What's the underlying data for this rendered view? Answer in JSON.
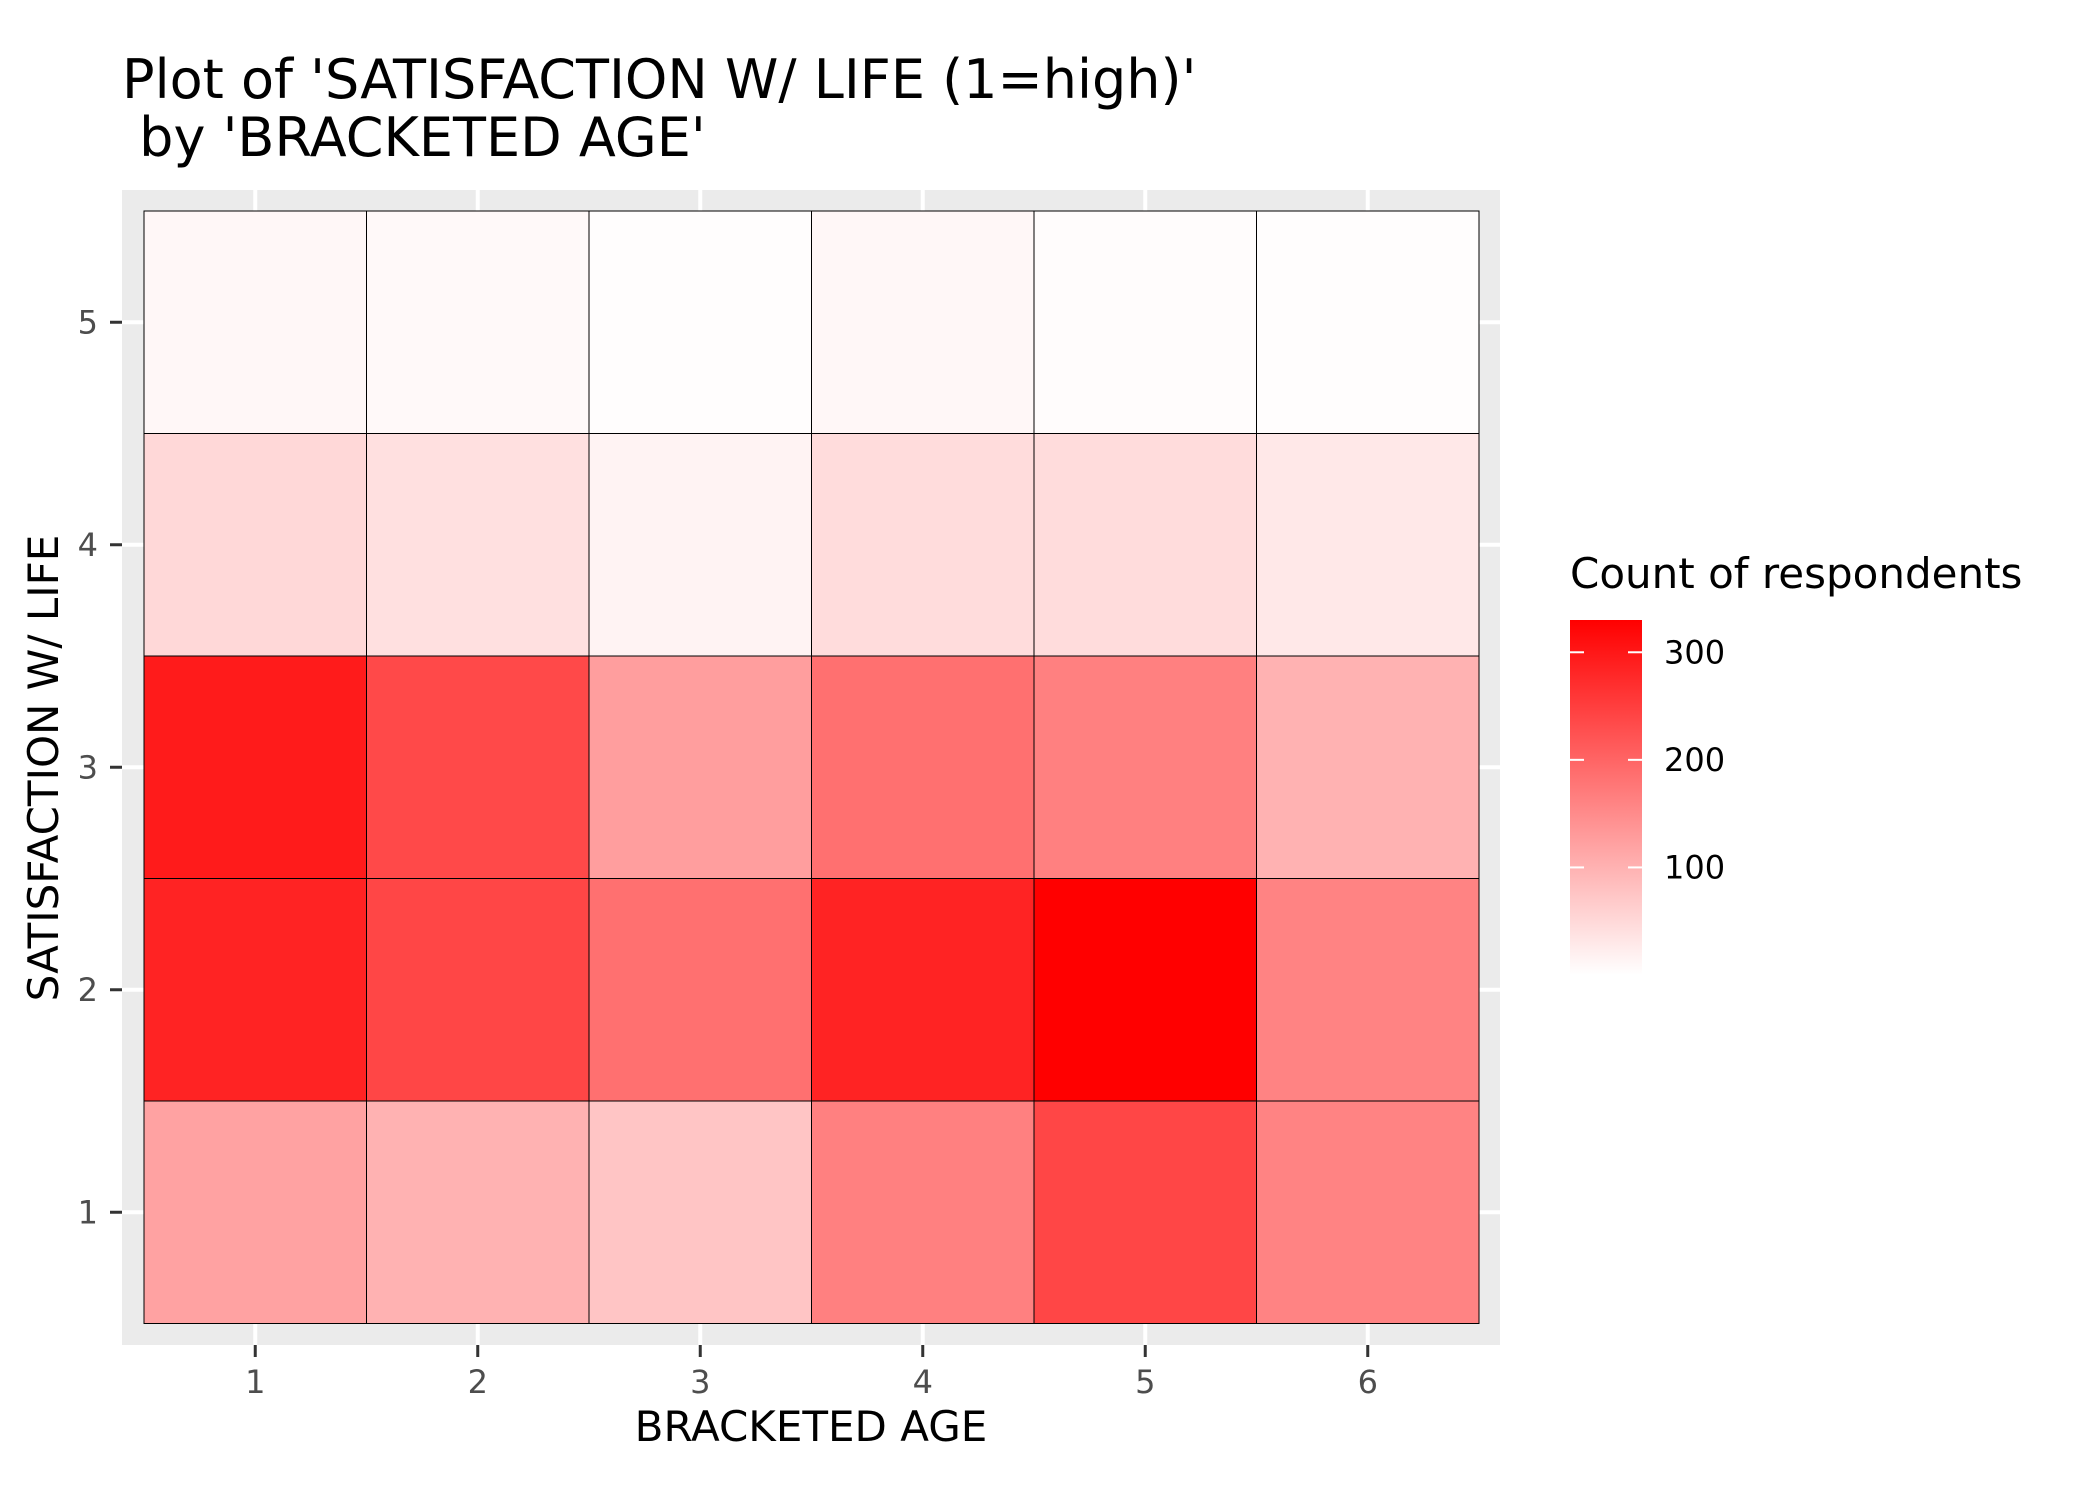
{
  "chart_data": {
    "type": "heatmap",
    "title_line1": "Plot of 'SATISFACTION W/ LIFE (1=high)'",
    "title_line2": " by 'BRACKETED AGE'",
    "xlabel": "BRACKETED AGE",
    "ylabel": "SATISFACTION W/ LIFE",
    "x_categories": [
      "1",
      "2",
      "3",
      "4",
      "5",
      "6"
    ],
    "y_categories": [
      "1",
      "2",
      "3",
      "4",
      "5"
    ],
    "cells": [
      {
        "x": 1,
        "y": 1,
        "value": 120
      },
      {
        "x": 2,
        "y": 1,
        "value": 100
      },
      {
        "x": 3,
        "y": 1,
        "value": 75
      },
      {
        "x": 4,
        "y": 1,
        "value": 165
      },
      {
        "x": 5,
        "y": 1,
        "value": 240
      },
      {
        "x": 6,
        "y": 1,
        "value": 160
      },
      {
        "x": 1,
        "y": 2,
        "value": 285
      },
      {
        "x": 2,
        "y": 2,
        "value": 240
      },
      {
        "x": 3,
        "y": 2,
        "value": 185
      },
      {
        "x": 4,
        "y": 2,
        "value": 285
      },
      {
        "x": 5,
        "y": 2,
        "value": 330
      },
      {
        "x": 6,
        "y": 2,
        "value": 160
      },
      {
        "x": 1,
        "y": 3,
        "value": 295
      },
      {
        "x": 2,
        "y": 3,
        "value": 235
      },
      {
        "x": 3,
        "y": 3,
        "value": 125
      },
      {
        "x": 4,
        "y": 3,
        "value": 185
      },
      {
        "x": 5,
        "y": 3,
        "value": 165
      },
      {
        "x": 6,
        "y": 3,
        "value": 100
      },
      {
        "x": 1,
        "y": 4,
        "value": 50
      },
      {
        "x": 2,
        "y": 4,
        "value": 40
      },
      {
        "x": 3,
        "y": 4,
        "value": 15
      },
      {
        "x": 4,
        "y": 4,
        "value": 45
      },
      {
        "x": 5,
        "y": 4,
        "value": 45
      },
      {
        "x": 6,
        "y": 4,
        "value": 30
      },
      {
        "x": 1,
        "y": 5,
        "value": 10
      },
      {
        "x": 2,
        "y": 5,
        "value": 8
      },
      {
        "x": 3,
        "y": 5,
        "value": 3
      },
      {
        "x": 4,
        "y": 5,
        "value": 10
      },
      {
        "x": 5,
        "y": 5,
        "value": 4
      },
      {
        "x": 6,
        "y": 5,
        "value": 2
      }
    ],
    "color_scale": {
      "low": "#ffffff",
      "high": "#ff0000",
      "min": 0,
      "max": 330
    },
    "legend": {
      "title": "Count of respondents",
      "ticks": [
        "300",
        "200",
        "100"
      ],
      "tick_values": [
        300,
        200,
        100
      ],
      "position": "right"
    },
    "colors": {
      "panel": "#ebebeb",
      "grid": "#ffffff",
      "tile_border": "#000000",
      "axis_text": "#4d4d4d"
    },
    "grid": true
  }
}
